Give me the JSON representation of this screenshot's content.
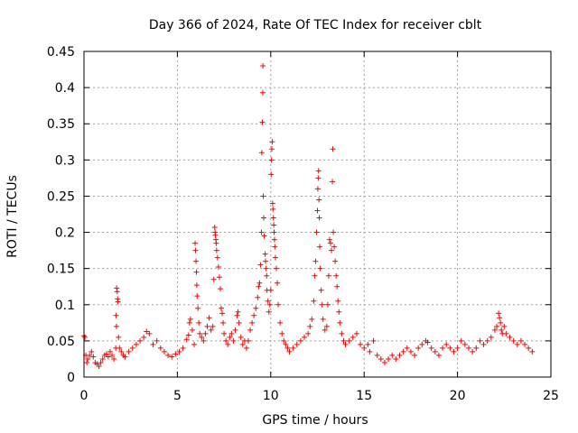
{
  "chart_data": {
    "type": "scatter",
    "title": "Day 366 of 2024, Rate Of TEC Index for receiver cblt",
    "xlabel": "GPS time / hours",
    "ylabel": "ROTI / TECUs",
    "xlim": [
      0,
      25
    ],
    "ylim": [
      0,
      0.45
    ],
    "x_ticks": [
      "0",
      "5",
      "10",
      "15",
      "20",
      "25"
    ],
    "y_ticks": [
      "0",
      "0.05",
      "0.1",
      "0.15",
      "0.2",
      "0.25",
      "0.3",
      "0.35",
      "0.4",
      "0.45"
    ],
    "grid": true,
    "marker": "+",
    "color": "#ff0000",
    "series": [
      {
        "name": "ROTI",
        "points": [
          [
            0.0,
            0.057
          ],
          [
            0.05,
            0.055
          ],
          [
            0.1,
            0.03
          ],
          [
            0.15,
            0.02
          ],
          [
            0.2,
            0.025
          ],
          [
            0.3,
            0.03
          ],
          [
            0.4,
            0.035
          ],
          [
            0.5,
            0.028
          ],
          [
            0.6,
            0.02
          ],
          [
            0.7,
            0.018
          ],
          [
            0.8,
            0.015
          ],
          [
            0.9,
            0.02
          ],
          [
            1.0,
            0.025
          ],
          [
            1.1,
            0.03
          ],
          [
            1.2,
            0.032
          ],
          [
            1.3,
            0.028
          ],
          [
            1.4,
            0.035
          ],
          [
            1.5,
            0.03
          ],
          [
            1.6,
            0.025
          ],
          [
            1.7,
            0.04
          ],
          [
            1.75,
            0.123
          ],
          [
            1.78,
            0.118
          ],
          [
            1.8,
            0.108
          ],
          [
            1.82,
            0.104
          ],
          [
            1.72,
            0.085
          ],
          [
            1.74,
            0.07
          ],
          [
            1.85,
            0.055
          ],
          [
            1.9,
            0.04
          ],
          [
            2.0,
            0.035
          ],
          [
            2.1,
            0.03
          ],
          [
            2.2,
            0.028
          ],
          [
            2.4,
            0.035
          ],
          [
            2.6,
            0.04
          ],
          [
            2.8,
            0.045
          ],
          [
            3.0,
            0.05
          ],
          [
            3.2,
            0.055
          ],
          [
            3.35,
            0.063
          ],
          [
            3.5,
            0.06
          ],
          [
            3.7,
            0.045
          ],
          [
            3.9,
            0.05
          ],
          [
            4.1,
            0.04
          ],
          [
            4.3,
            0.035
          ],
          [
            4.5,
            0.03
          ],
          [
            4.7,
            0.028
          ],
          [
            4.9,
            0.032
          ],
          [
            5.1,
            0.035
          ],
          [
            5.3,
            0.04
          ],
          [
            5.5,
            0.052
          ],
          [
            5.6,
            0.058
          ],
          [
            5.65,
            0.075
          ],
          [
            5.7,
            0.08
          ],
          [
            5.8,
            0.065
          ],
          [
            5.9,
            0.045
          ],
          [
            5.95,
            0.185
          ],
          [
            5.97,
            0.175
          ],
          [
            6.0,
            0.16
          ],
          [
            6.02,
            0.145
          ],
          [
            6.04,
            0.127
          ],
          [
            6.06,
            0.112
          ],
          [
            6.1,
            0.095
          ],
          [
            6.15,
            0.075
          ],
          [
            6.2,
            0.06
          ],
          [
            6.3,
            0.055
          ],
          [
            6.4,
            0.05
          ],
          [
            6.5,
            0.06
          ],
          [
            6.6,
            0.07
          ],
          [
            6.7,
            0.082
          ],
          [
            6.8,
            0.065
          ],
          [
            6.9,
            0.07
          ],
          [
            6.95,
            0.135
          ],
          [
            7.0,
            0.207
          ],
          [
            7.02,
            0.2
          ],
          [
            7.04,
            0.196
          ],
          [
            7.06,
            0.19
          ],
          [
            7.08,
            0.185
          ],
          [
            7.1,
            0.175
          ],
          [
            7.15,
            0.165
          ],
          [
            7.2,
            0.152
          ],
          [
            7.25,
            0.138
          ],
          [
            7.3,
            0.122
          ],
          [
            7.35,
            0.095
          ],
          [
            7.4,
            0.088
          ],
          [
            7.45,
            0.075
          ],
          [
            7.5,
            0.06
          ],
          [
            7.6,
            0.05
          ],
          [
            7.7,
            0.045
          ],
          [
            7.8,
            0.055
          ],
          [
            7.9,
            0.06
          ],
          [
            8.0,
            0.05
          ],
          [
            8.1,
            0.065
          ],
          [
            8.2,
            0.085
          ],
          [
            8.25,
            0.09
          ],
          [
            8.3,
            0.075
          ],
          [
            8.4,
            0.055
          ],
          [
            8.5,
            0.045
          ],
          [
            8.6,
            0.05
          ],
          [
            8.7,
            0.04
          ],
          [
            8.8,
            0.05
          ],
          [
            8.9,
            0.065
          ],
          [
            9.0,
            0.075
          ],
          [
            9.1,
            0.085
          ],
          [
            9.2,
            0.095
          ],
          [
            9.3,
            0.11
          ],
          [
            9.35,
            0.125
          ],
          [
            9.4,
            0.13
          ],
          [
            9.45,
            0.155
          ],
          [
            9.5,
            0.2
          ],
          [
            9.52,
            0.31
          ],
          [
            9.55,
            0.352
          ],
          [
            9.57,
            0.393
          ],
          [
            9.58,
            0.43
          ],
          [
            9.6,
            0.25
          ],
          [
            9.62,
            0.22
          ],
          [
            9.65,
            0.195
          ],
          [
            9.7,
            0.17
          ],
          [
            9.72,
            0.16
          ],
          [
            9.75,
            0.15
          ],
          [
            9.78,
            0.14
          ],
          [
            9.8,
            0.12
          ],
          [
            9.85,
            0.105
          ],
          [
            9.9,
            0.09
          ],
          [
            9.95,
            0.1
          ],
          [
            10.0,
            0.12
          ],
          [
            10.02,
            0.28
          ],
          [
            10.04,
            0.3
          ],
          [
            10.06,
            0.315
          ],
          [
            10.08,
            0.325
          ],
          [
            10.1,
            0.24
          ],
          [
            10.12,
            0.232
          ],
          [
            10.14,
            0.22
          ],
          [
            10.16,
            0.21
          ],
          [
            10.18,
            0.2
          ],
          [
            10.2,
            0.19
          ],
          [
            10.22,
            0.18
          ],
          [
            10.25,
            0.165
          ],
          [
            10.3,
            0.15
          ],
          [
            10.35,
            0.13
          ],
          [
            10.4,
            0.1
          ],
          [
            10.5,
            0.075
          ],
          [
            10.6,
            0.06
          ],
          [
            10.7,
            0.05
          ],
          [
            10.8,
            0.045
          ],
          [
            10.9,
            0.04
          ],
          [
            11.0,
            0.035
          ],
          [
            11.2,
            0.04
          ],
          [
            11.4,
            0.045
          ],
          [
            11.6,
            0.05
          ],
          [
            11.8,
            0.055
          ],
          [
            12.0,
            0.06
          ],
          [
            12.1,
            0.07
          ],
          [
            12.2,
            0.08
          ],
          [
            12.3,
            0.105
          ],
          [
            12.35,
            0.14
          ],
          [
            12.4,
            0.16
          ],
          [
            12.45,
            0.2
          ],
          [
            12.5,
            0.23
          ],
          [
            12.52,
            0.26
          ],
          [
            12.54,
            0.275
          ],
          [
            12.56,
            0.285
          ],
          [
            12.58,
            0.245
          ],
          [
            12.6,
            0.22
          ],
          [
            12.62,
            0.18
          ],
          [
            12.65,
            0.15
          ],
          [
            12.7,
            0.12
          ],
          [
            12.75,
            0.1
          ],
          [
            12.8,
            0.08
          ],
          [
            12.9,
            0.065
          ],
          [
            13.0,
            0.07
          ],
          [
            13.05,
            0.1
          ],
          [
            13.1,
            0.14
          ],
          [
            13.15,
            0.19
          ],
          [
            13.2,
            0.185
          ],
          [
            13.25,
            0.175
          ],
          [
            13.3,
            0.27
          ],
          [
            13.32,
            0.315
          ],
          [
            13.35,
            0.2
          ],
          [
            13.4,
            0.18
          ],
          [
            13.45,
            0.16
          ],
          [
            13.5,
            0.14
          ],
          [
            13.55,
            0.125
          ],
          [
            13.6,
            0.105
          ],
          [
            13.65,
            0.09
          ],
          [
            13.7,
            0.075
          ],
          [
            13.8,
            0.06
          ],
          [
            13.9,
            0.05
          ],
          [
            14.0,
            0.045
          ],
          [
            14.2,
            0.05
          ],
          [
            14.4,
            0.055
          ],
          [
            14.6,
            0.06
          ],
          [
            14.8,
            0.045
          ],
          [
            15.0,
            0.04
          ],
          [
            15.2,
            0.045
          ],
          [
            15.3,
            0.035
          ],
          [
            15.5,
            0.05
          ],
          [
            15.7,
            0.03
          ],
          [
            15.9,
            0.025
          ],
          [
            16.1,
            0.02
          ],
          [
            16.3,
            0.025
          ],
          [
            16.5,
            0.03
          ],
          [
            16.7,
            0.025
          ],
          [
            16.9,
            0.03
          ],
          [
            17.1,
            0.035
          ],
          [
            17.3,
            0.04
          ],
          [
            17.5,
            0.035
          ],
          [
            17.7,
            0.03
          ],
          [
            17.9,
            0.04
          ],
          [
            18.1,
            0.045
          ],
          [
            18.3,
            0.05
          ],
          [
            18.4,
            0.048
          ],
          [
            18.6,
            0.04
          ],
          [
            18.8,
            0.035
          ],
          [
            19.0,
            0.03
          ],
          [
            19.2,
            0.04
          ],
          [
            19.4,
            0.045
          ],
          [
            19.6,
            0.04
          ],
          [
            19.8,
            0.035
          ],
          [
            20.0,
            0.04
          ],
          [
            20.2,
            0.05
          ],
          [
            20.4,
            0.045
          ],
          [
            20.6,
            0.04
          ],
          [
            20.8,
            0.035
          ],
          [
            21.0,
            0.04
          ],
          [
            21.2,
            0.05
          ],
          [
            21.4,
            0.045
          ],
          [
            21.6,
            0.05
          ],
          [
            21.8,
            0.055
          ],
          [
            22.0,
            0.065
          ],
          [
            22.1,
            0.07
          ],
          [
            22.2,
            0.088
          ],
          [
            22.25,
            0.082
          ],
          [
            22.3,
            0.075
          ],
          [
            22.35,
            0.065
          ],
          [
            22.4,
            0.06
          ],
          [
            22.5,
            0.07
          ],
          [
            22.6,
            0.06
          ],
          [
            22.8,
            0.055
          ],
          [
            23.0,
            0.05
          ],
          [
            23.2,
            0.045
          ],
          [
            23.4,
            0.05
          ],
          [
            23.6,
            0.045
          ],
          [
            23.8,
            0.04
          ],
          [
            24.0,
            0.035
          ]
        ]
      }
    ]
  }
}
